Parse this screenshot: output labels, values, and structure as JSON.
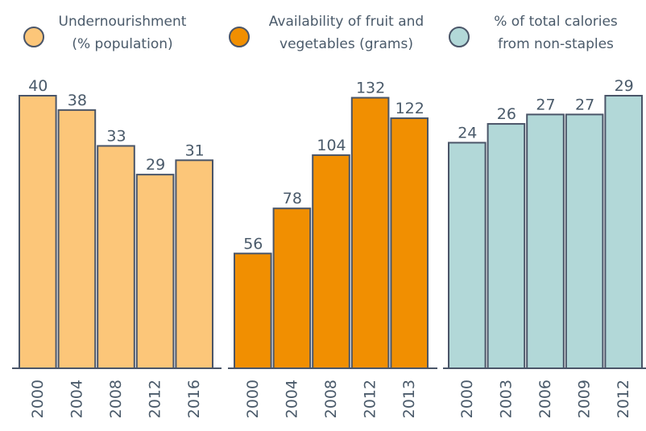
{
  "chart_data": [
    {
      "type": "bar",
      "legend": [
        "Undernourishment",
        "(% population)"
      ],
      "color": "#fcc679",
      "categories": [
        "2000",
        "2004",
        "2008",
        "2012",
        "2016"
      ],
      "values": [
        40,
        38,
        33,
        29,
        31
      ],
      "ylim": [
        2,
        40
      ]
    },
    {
      "type": "bar",
      "legend": [
        "Availability of fruit and",
        "vegetables (grams)"
      ],
      "color": "#f18f01",
      "categories": [
        "2000",
        "2004",
        "2008",
        "2012",
        "2013"
      ],
      "values": [
        56,
        78,
        104,
        132,
        122
      ],
      "ylim": [
        0,
        133
      ]
    },
    {
      "type": "bar",
      "legend": [
        "% of total calories",
        "from non-staples"
      ],
      "color": "#b2d8d8",
      "categories": [
        "2000",
        "2003",
        "2006",
        "2009",
        "2012"
      ],
      "values": [
        24,
        26,
        27,
        27,
        29
      ],
      "ylim": [
        0,
        29
      ]
    }
  ]
}
